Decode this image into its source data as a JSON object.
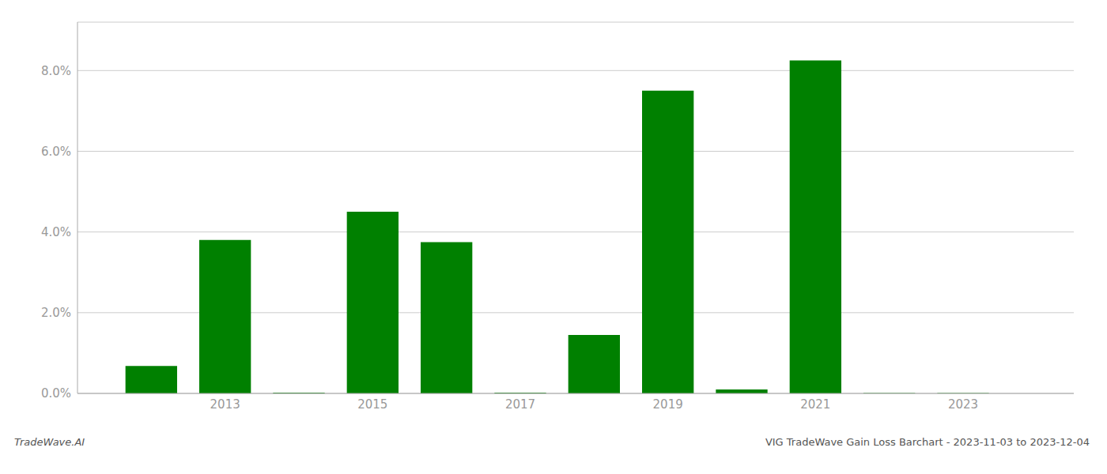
{
  "chart_data": {
    "type": "bar",
    "x": [
      2012,
      2013,
      2014,
      2015,
      2016,
      2017,
      2018,
      2019,
      2020,
      2021,
      2022,
      2023
    ],
    "values": [
      0.0068,
      0.038,
      0.0002,
      0.045,
      0.0375,
      0.00018,
      0.0145,
      0.075,
      0.001,
      0.0825,
      0.0001,
      0.0001
    ],
    "color": "#008000",
    "xlim": [
      2011,
      2024.5
    ],
    "xticks": [
      2013,
      2015,
      2017,
      2019,
      2021,
      2023
    ],
    "ylim": [
      0,
      0.092
    ],
    "yticks": [
      {
        "value": 0.0,
        "label": "0.0%"
      },
      {
        "value": 0.02,
        "label": "2.0%"
      },
      {
        "value": 0.04,
        "label": "4.0%"
      },
      {
        "value": 0.06,
        "label": "6.0%"
      },
      {
        "value": 0.08,
        "label": "8.0%"
      }
    ],
    "grid": true,
    "annotations": [
      "TradeWave.AI",
      "VIG TradeWave Gain Loss Barchart - 2023-11-03 to 2023-12-04"
    ]
  }
}
